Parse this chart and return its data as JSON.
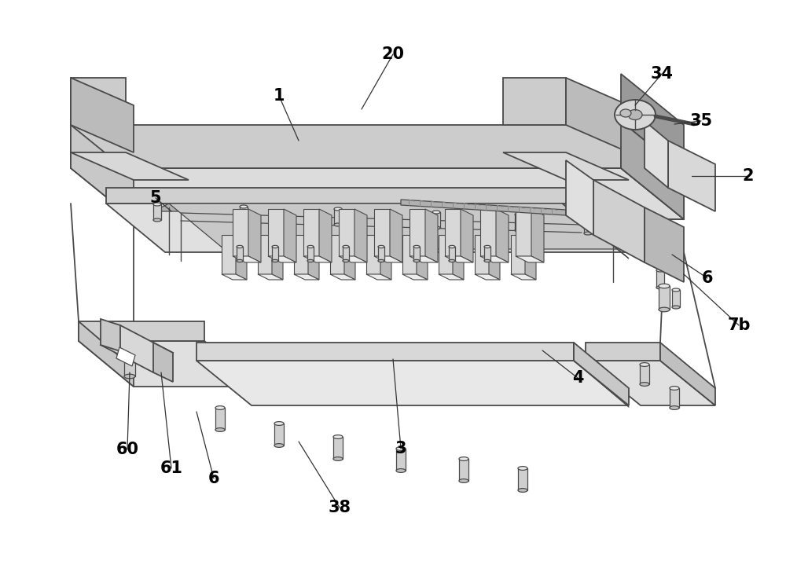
{
  "background_color": "#ffffff",
  "line_color": "#4a4a4a",
  "line_width": 1.3,
  "face_light": "#e8e8e8",
  "face_mid": "#d4d4d4",
  "face_dark": "#b8b8b8",
  "face_darker": "#a0a0a0",
  "figsize": [
    10.0,
    7.14
  ]
}
